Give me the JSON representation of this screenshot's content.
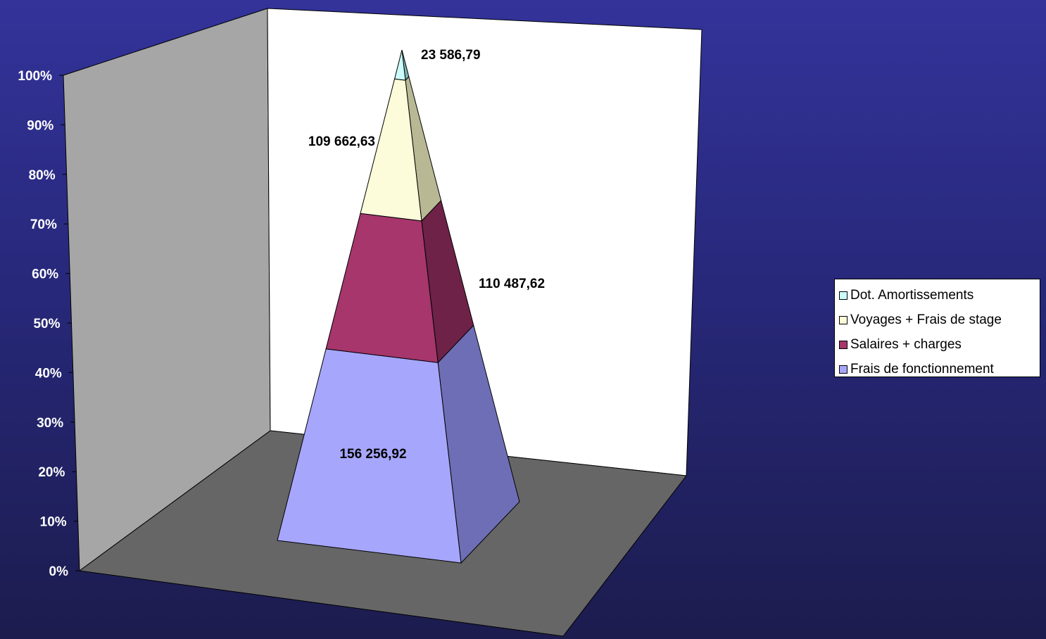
{
  "chart_data": {
    "type": "stacked-pyramid-3d",
    "categories": [
      ""
    ],
    "series": [
      {
        "name": "Frais de fonctionnement",
        "value": 156256.92,
        "label": "156 256,92",
        "color": "#a6a6fc",
        "side": "#6e6eb6"
      },
      {
        "name": "Salaires + charges",
        "value": 110487.62,
        "label": "110 487,62",
        "color": "#a6366c",
        "side": "#6e2248"
      },
      {
        "name": "Voyages + Frais de stage",
        "value": 109662.63,
        "label": "109 662,63",
        "color": "#fcfcda",
        "side": "#b8b894"
      },
      {
        "name": "Dot. Amortissements",
        "value": 23586.79,
        "label": "23 586,79",
        "color": "#cdfcfc",
        "side": "#7ab2b2"
      }
    ],
    "yaxis": {
      "ticks": [
        "0%",
        "10%",
        "20%",
        "30%",
        "40%",
        "50%",
        "60%",
        "70%",
        "80%",
        "90%",
        "100%"
      ],
      "ylim": [
        0,
        100
      ],
      "unit": "%"
    },
    "stacking": "percent",
    "legend_position": "right",
    "grid": false,
    "colors": {
      "back_wall": "#ffffff",
      "side_wall": "#a6a6a6",
      "floor": "#666666"
    }
  }
}
